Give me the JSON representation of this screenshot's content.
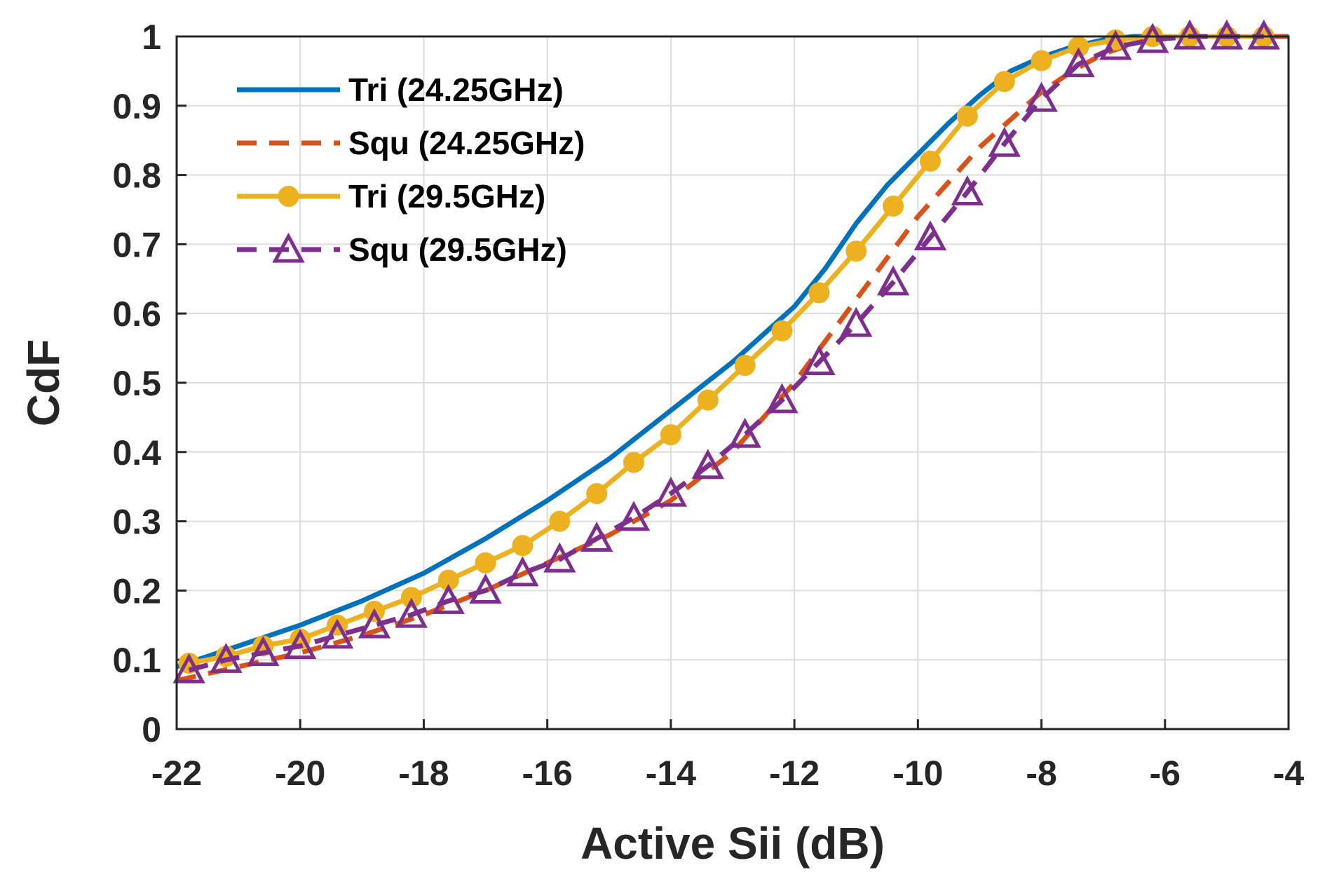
{
  "chart_data": {
    "type": "line",
    "title": "",
    "xlabel": "Active Sii (dB)",
    "ylabel": "CdF",
    "xlim": [
      -22,
      -4
    ],
    "ylim": [
      0,
      1
    ],
    "grid": true,
    "legend_position": "top-left",
    "x_ticks": [
      "-22",
      "-20",
      "-18",
      "-16",
      "-14",
      "-12",
      "-10",
      "-8",
      "-6",
      "-4"
    ],
    "y_ticks": [
      "0",
      "0.1",
      "0.2",
      "0.3",
      "0.4",
      "0.5",
      "0.6",
      "0.7",
      "0.8",
      "0.9",
      "1"
    ],
    "series": [
      {
        "name": "Tri (24.25GHz)",
        "color": "#0072BD",
        "style": "solid",
        "marker": "none",
        "x": [
          -22,
          -21,
          -20,
          -19,
          -18,
          -17,
          -16,
          -15,
          -14,
          -13,
          -12,
          -11.5,
          -11,
          -10.5,
          -10,
          -9.5,
          -9,
          -8.5,
          -8,
          -7.5,
          -7,
          -6.5,
          -6,
          -5,
          -4
        ],
        "y": [
          0.09,
          0.12,
          0.15,
          0.185,
          0.225,
          0.275,
          0.33,
          0.39,
          0.46,
          0.53,
          0.61,
          0.665,
          0.73,
          0.785,
          0.83,
          0.875,
          0.915,
          0.95,
          0.97,
          0.985,
          0.995,
          1.0,
          1.0,
          1.0,
          1.0
        ]
      },
      {
        "name": "Squ (24.25GHz)",
        "color": "#D95319",
        "style": "dashed",
        "marker": "none",
        "x": [
          -22,
          -21,
          -20,
          -19,
          -18,
          -17,
          -16,
          -15,
          -14,
          -13,
          -12.5,
          -12,
          -11.5,
          -11,
          -10.5,
          -10,
          -9.5,
          -9,
          -8.5,
          -8,
          -7.5,
          -7,
          -6.5,
          -6,
          -5.5,
          -5,
          -4
        ],
        "y": [
          0.07,
          0.09,
          0.11,
          0.135,
          0.165,
          0.2,
          0.24,
          0.28,
          0.33,
          0.4,
          0.45,
          0.5,
          0.56,
          0.62,
          0.68,
          0.74,
          0.79,
          0.84,
          0.88,
          0.92,
          0.95,
          0.975,
          0.99,
          1.0,
          1.0,
          1.0,
          1.0
        ]
      },
      {
        "name": "Tri (29.5GHz)",
        "color": "#EDB120",
        "style": "solid",
        "marker": "circle",
        "x": [
          -21.8,
          -21.2,
          -20.6,
          -20.0,
          -19.4,
          -18.8,
          -18.2,
          -17.6,
          -17.0,
          -16.4,
          -15.8,
          -15.2,
          -14.6,
          -14.0,
          -13.4,
          -12.8,
          -12.2,
          -11.6,
          -11.0,
          -10.4,
          -9.8,
          -9.2,
          -8.6,
          -8.0,
          -7.4,
          -6.8,
          -6.2,
          -5.6,
          -5.0,
          -4.4
        ],
        "y": [
          0.095,
          0.105,
          0.12,
          0.13,
          0.15,
          0.17,
          0.19,
          0.215,
          0.24,
          0.265,
          0.3,
          0.34,
          0.385,
          0.425,
          0.475,
          0.525,
          0.575,
          0.63,
          0.69,
          0.755,
          0.82,
          0.885,
          0.935,
          0.965,
          0.985,
          0.995,
          1.0,
          1.0,
          1.0,
          1.0
        ]
      },
      {
        "name": "Squ (29.5GHz)",
        "color": "#7E2F8E",
        "style": "dashed",
        "marker": "triangle",
        "x": [
          -21.8,
          -21.2,
          -20.6,
          -20.0,
          -19.4,
          -18.8,
          -18.2,
          -17.6,
          -17.0,
          -16.4,
          -15.8,
          -15.2,
          -14.6,
          -14.0,
          -13.4,
          -12.8,
          -12.2,
          -11.6,
          -11.0,
          -10.4,
          -9.8,
          -9.2,
          -8.6,
          -8.0,
          -7.4,
          -6.8,
          -6.2,
          -5.6,
          -5.0,
          -4.4
        ],
        "y": [
          0.085,
          0.1,
          0.11,
          0.12,
          0.135,
          0.15,
          0.165,
          0.185,
          0.2,
          0.225,
          0.245,
          0.275,
          0.305,
          0.34,
          0.38,
          0.425,
          0.475,
          0.53,
          0.585,
          0.645,
          0.71,
          0.775,
          0.845,
          0.91,
          0.96,
          0.985,
          0.995,
          1.0,
          1.0,
          1.0
        ]
      }
    ]
  }
}
